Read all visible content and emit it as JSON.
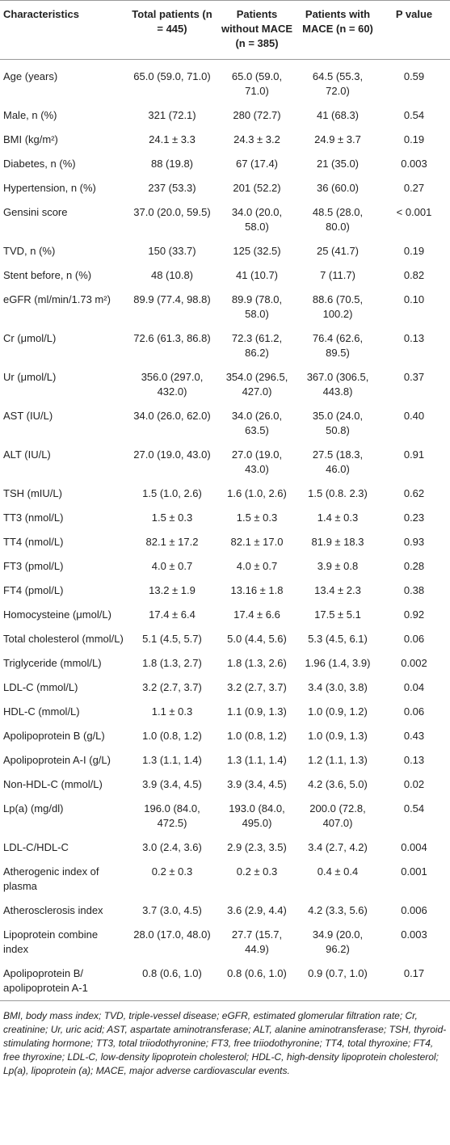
{
  "table": {
    "header": [
      "Characteristics",
      "Total patients (n = 445)",
      "Patients without MACE (n = 385)",
      "Patients with MACE (n = 60)",
      "P value"
    ],
    "rows": [
      [
        "Age (years)",
        "65.0 (59.0, 71.0)",
        "65.0 (59.0, 71.0)",
        "64.5 (55.3, 72.0)",
        "0.59"
      ],
      [
        "Male, n (%)",
        "321 (72.1)",
        "280 (72.7)",
        "41 (68.3)",
        "0.54"
      ],
      [
        "BMI (kg/m²)",
        "24.1 ± 3.3",
        "24.3 ± 3.2",
        "24.9 ± 3.7",
        "0.19"
      ],
      [
        "Diabetes, n (%)",
        "88 (19.8)",
        "67 (17.4)",
        "21 (35.0)",
        "0.003"
      ],
      [
        "Hypertension, n (%)",
        "237 (53.3)",
        "201 (52.2)",
        "36 (60.0)",
        "0.27"
      ],
      [
        "Gensini score",
        "37.0 (20.0, 59.5)",
        "34.0 (20.0, 58.0)",
        "48.5 (28.0, 80.0)",
        "< 0.001"
      ],
      [
        "TVD, n (%)",
        "150 (33.7)",
        "125 (32.5)",
        "25 (41.7)",
        "0.19"
      ],
      [
        "Stent before, n (%)",
        "48 (10.8)",
        "41 (10.7)",
        "7 (11.7)",
        "0.82"
      ],
      [
        "eGFR (ml/min/1.73 m²)",
        "89.9 (77.4, 98.8)",
        "89.9 (78.0, 58.0)",
        "88.6 (70.5, 100.2)",
        "0.10"
      ],
      [
        "Cr (μmol/L)",
        "72.6 (61.3, 86.8)",
        "72.3 (61.2, 86.2)",
        "76.4 (62.6, 89.5)",
        "0.13"
      ],
      [
        "Ur (μmol/L)",
        "356.0 (297.0, 432.0)",
        "354.0 (296.5, 427.0)",
        "367.0 (306.5, 443.8)",
        "0.37"
      ],
      [
        "AST (IU/L)",
        "34.0 (26.0, 62.0)",
        "34.0 (26.0, 63.5)",
        "35.0 (24.0, 50.8)",
        "0.40"
      ],
      [
        "ALT (IU/L)",
        "27.0 (19.0, 43.0)",
        "27.0 (19.0, 43.0)",
        "27.5 (18.3, 46.0)",
        "0.91"
      ],
      [
        "TSH (mIU/L)",
        "1.5 (1.0, 2.6)",
        "1.6 (1.0, 2.6)",
        "1.5 (0.8. 2.3)",
        "0.62"
      ],
      [
        "TT3 (nmol/L)",
        "1.5 ± 0.3",
        "1.5 ± 0.3",
        "1.4 ± 0.3",
        "0.23"
      ],
      [
        "TT4 (nmol/L)",
        "82.1 ± 17.2",
        "82.1 ± 17.0",
        "81.9 ± 18.3",
        "0.93"
      ],
      [
        "FT3 (pmol/L)",
        "4.0 ± 0.7",
        "4.0 ± 0.7",
        "3.9 ± 0.8",
        "0.28"
      ],
      [
        "FT4 (pmol/L)",
        "13.2 ± 1.9",
        "13.16 ± 1.8",
        "13.4 ± 2.3",
        "0.38"
      ],
      [
        "Homocysteine (μmol/L)",
        "17.4 ± 6.4",
        "17.4 ± 6.6",
        "17.5 ± 5.1",
        "0.92"
      ],
      [
        "Total cholesterol (mmol/L)",
        "5.1 (4.5, 5.7)",
        "5.0 (4.4, 5.6)",
        "5.3 (4.5, 6.1)",
        "0.06"
      ],
      [
        "Triglyceride (mmol/L)",
        "1.8 (1.3, 2.7)",
        "1.8 (1.3, 2.6)",
        "1.96 (1.4, 3.9)",
        "0.002"
      ],
      [
        "LDL-C (mmol/L)",
        "3.2 (2.7, 3.7)",
        "3.2 (2.7, 3.7)",
        "3.4 (3.0, 3.8)",
        "0.04"
      ],
      [
        "HDL-C (mmol/L)",
        "1.1 ± 0.3",
        "1.1 (0.9, 1.3)",
        "1.0 (0.9, 1.2)",
        "0.06"
      ],
      [
        "Apolipoprotein B (g/L)",
        "1.0 (0.8, 1.2)",
        "1.0 (0.8, 1.2)",
        "1.0 (0.9, 1.3)",
        "0.43"
      ],
      [
        "Apolipoprotein A-I (g/L)",
        "1.3 (1.1, 1.4)",
        "1.3 (1.1, 1.4)",
        "1.2 (1.1, 1.3)",
        "0.13"
      ],
      [
        "Non-HDL-C (mmol/L)",
        "3.9 (3.4, 4.5)",
        "3.9 (3.4, 4.5)",
        "4.2 (3.6, 5.0)",
        "0.02"
      ],
      [
        "Lp(a) (mg/dl)",
        "196.0 (84.0, 472.5)",
        "193.0 (84.0, 495.0)",
        "200.0 (72.8, 407.0)",
        "0.54"
      ],
      [
        "LDL-C/HDL-C",
        "3.0 (2.4, 3.6)",
        "2.9 (2.3, 3.5)",
        "3.4 (2.7, 4.2)",
        "0.004"
      ],
      [
        "Atherogenic index of plasma",
        "0.2 ± 0.3",
        "0.2 ± 0.3",
        "0.4 ± 0.4",
        "0.001"
      ],
      [
        "Atherosclerosis index",
        "3.7 (3.0, 4.5)",
        "3.6 (2.9, 4.4)",
        "4.2 (3.3, 5.6)",
        "0.006"
      ],
      [
        "Lipoprotein combine index",
        "28.0 (17.0, 48.0)",
        "27.7 (15.7, 44.9)",
        "34.9 (20.0, 96.2)",
        "0.003"
      ],
      [
        "Apolipoprotein B/ apolipoprotein A-1",
        "0.8 (0.6, 1.0)",
        "0.8 (0.6, 1.0)",
        "0.9 (0.7, 1.0)",
        "0.17"
      ]
    ]
  },
  "footnote": "BMI, body mass index; TVD, triple-vessel disease; eGFR, estimated glomerular filtration rate; Cr, creatinine; Ur, uric acid; AST, aspartate aminotransferase; ALT, alanine aminotransferase; TSH, thyroid-stimulating hormone; TT3, total triiodothyronine; FT3, free triiodothyronine; TT4, total thyroxine; FT4, free thyroxine; LDL-C, low-density lipoprotein cholesterol; HDL-C, high-density lipoprotein cholesterol; Lp(a), lipoprotein (a); MACE, major adverse cardiovascular events."
}
